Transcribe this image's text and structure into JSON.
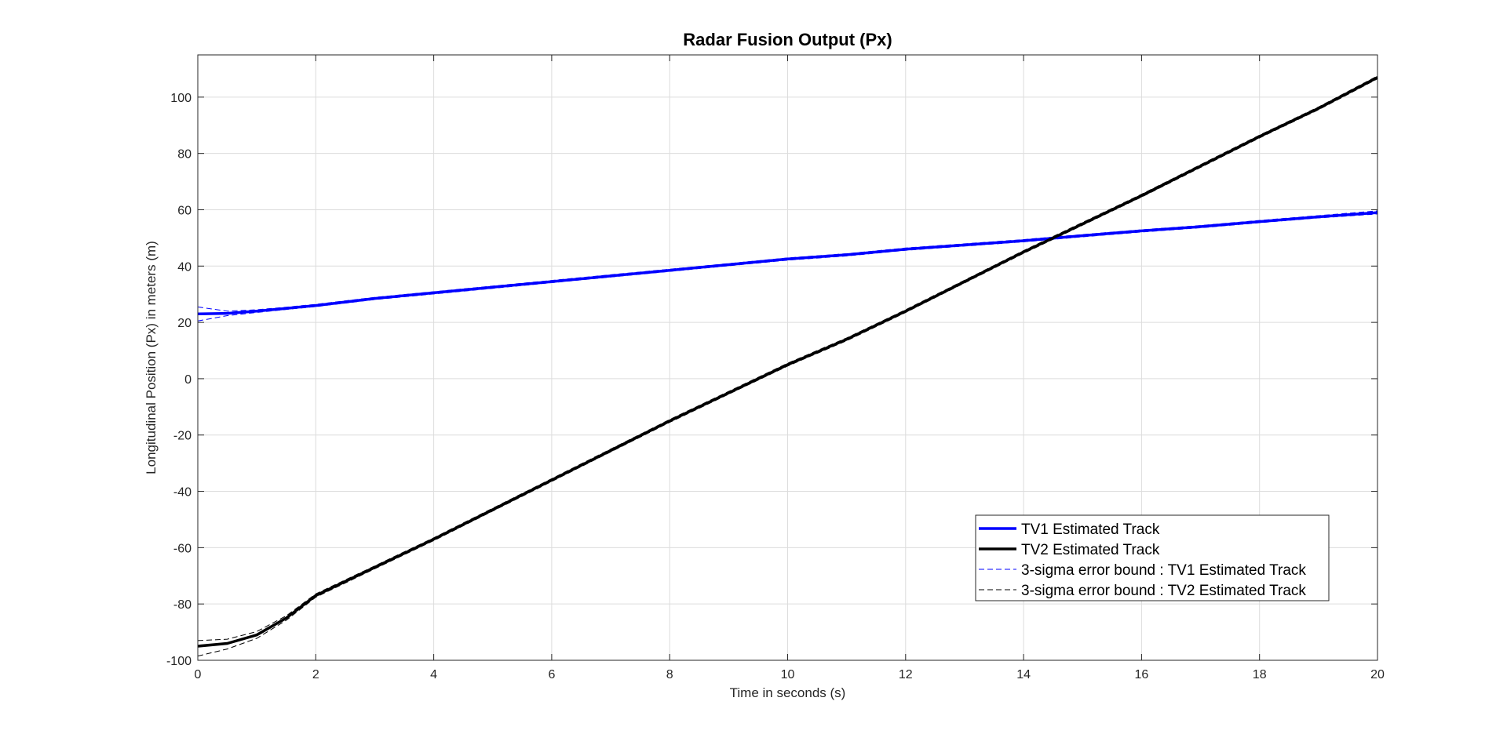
{
  "chart_data": {
    "type": "line",
    "title": "Radar Fusion Output (Px)",
    "xlabel": "Time in seconds (s)",
    "ylabel": "Longitudinal Position (Px) in meters (m)",
    "xlim": [
      0,
      20
    ],
    "ylim": [
      -100,
      115
    ],
    "xticks": [
      0,
      2,
      4,
      6,
      8,
      10,
      12,
      14,
      16,
      18,
      20
    ],
    "yticks": [
      -100,
      -80,
      -60,
      -40,
      -20,
      0,
      20,
      40,
      60,
      80,
      100
    ],
    "grid": true,
    "legend_position": "bottom-right",
    "series": [
      {
        "name": "TV1 Estimated Track",
        "color": "#0000ff",
        "style": "solid",
        "x": [
          0,
          0.5,
          1,
          1.5,
          2,
          3,
          4,
          5,
          6,
          7,
          8,
          9,
          10,
          11,
          12,
          13,
          14,
          15,
          16,
          17,
          18,
          19,
          20
        ],
        "y": [
          23,
          23.2,
          24,
          25,
          26,
          28.5,
          30.5,
          32.5,
          34.5,
          36.5,
          38.5,
          40.5,
          42.5,
          44,
          46,
          47.5,
          49,
          50.8,
          52.5,
          54,
          55.8,
          57.5,
          59
        ]
      },
      {
        "name": "TV2 Estimated Track",
        "color": "#000000",
        "style": "solid",
        "x": [
          0,
          0.5,
          1,
          1.5,
          2,
          3,
          4,
          5,
          6,
          7,
          8,
          9,
          10,
          11,
          12,
          13,
          14,
          14.5,
          15,
          16,
          17,
          18,
          19,
          20
        ],
        "y": [
          -95,
          -94,
          -91,
          -85,
          -77,
          -67,
          -57,
          -46.5,
          -36,
          -25.5,
          -15,
          -5,
          5,
          14,
          24,
          34.5,
          45,
          50,
          55,
          65,
          75.5,
          86,
          96,
          107
        ]
      },
      {
        "name": "3-sigma error bound : TV1 Estimated Track",
        "color": "#0000ff",
        "style": "dashed",
        "upper": [
          25.5,
          24,
          24.5,
          25.4,
          26.4,
          28.9,
          30.9,
          32.9,
          34.9,
          36.9,
          38.9,
          40.9,
          42.9,
          44.4,
          46.4,
          47.9,
          49.4,
          51.2,
          52.9,
          54.4,
          56.2,
          57.9,
          59.6
        ],
        "lower": [
          20.5,
          22.4,
          23.5,
          24.6,
          25.6,
          28.1,
          30.1,
          32.1,
          34.1,
          36.1,
          38.1,
          40.1,
          42.1,
          43.6,
          45.6,
          47.1,
          48.6,
          50.4,
          52.1,
          53.6,
          55.4,
          57.1,
          58.5
        ]
      },
      {
        "name": "3-sigma error bound : TV2 Estimated Track",
        "color": "#000000",
        "style": "dashed",
        "upper": [
          -93,
          -92.5,
          -89.8,
          -84.2,
          -76.4,
          -66.5,
          -56.5,
          -46,
          -35.5,
          -25,
          -14.5,
          -4.5,
          5.5,
          14.5,
          24.5,
          35,
          45.5,
          50.5,
          55.5,
          65.5,
          76,
          86.5,
          96.5,
          107.5
        ],
        "lower": [
          -98.5,
          -96,
          -92.2,
          -85.8,
          -77.6,
          -67.5,
          -57.5,
          -47,
          -36.5,
          -26,
          -15.5,
          -5.5,
          4.5,
          13.5,
          23.5,
          34,
          44.5,
          49.5,
          54.5,
          64.5,
          75,
          85.5,
          95.5,
          106.5
        ]
      }
    ]
  }
}
